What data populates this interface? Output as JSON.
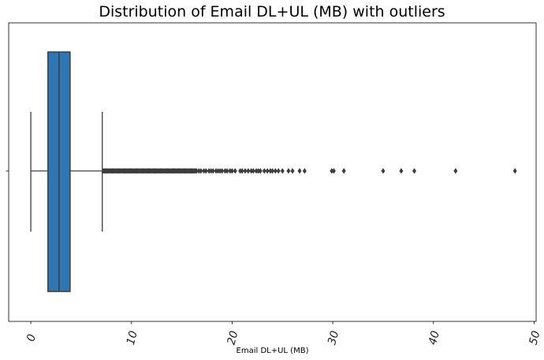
{
  "chart_data": {
    "type": "box",
    "title": "Distribution of Email DL+UL (MB) with outliers",
    "xlabel": "Email DL+UL (MB)",
    "ylabel": "",
    "xlim": [
      -2.2,
      50.2
    ],
    "xticks": [
      0,
      10,
      20,
      30,
      40,
      50
    ],
    "xtick_labels": [
      "0",
      "10",
      "20",
      "30",
      "40",
      "50"
    ],
    "orientation": "horizontal",
    "grid": false,
    "box": {
      "whisker_low": 0.0,
      "q1": 1.7,
      "median": 2.8,
      "q3": 3.9,
      "whisker_high": 7.1,
      "color": "#2f77b4",
      "edge_color": "#3d3d3d"
    },
    "outliers_dense_range": [
      7.1,
      16.5
    ],
    "outliers": [
      16.7,
      16.9,
      17.2,
      17.4,
      17.7,
      17.9,
      18.1,
      18.4,
      18.6,
      18.8,
      19.0,
      19.3,
      19.5,
      19.8,
      20.0,
      20.3,
      20.8,
      21.0,
      21.3,
      21.6,
      21.9,
      22.1,
      22.4,
      22.6,
      22.8,
      23.2,
      23.5,
      23.8,
      24.0,
      24.3,
      24.6,
      25.0,
      25.6,
      26.0,
      26.7,
      27.2,
      29.9,
      30.1,
      31.1,
      35.0,
      36.8,
      38.1,
      42.2,
      48.1
    ]
  }
}
